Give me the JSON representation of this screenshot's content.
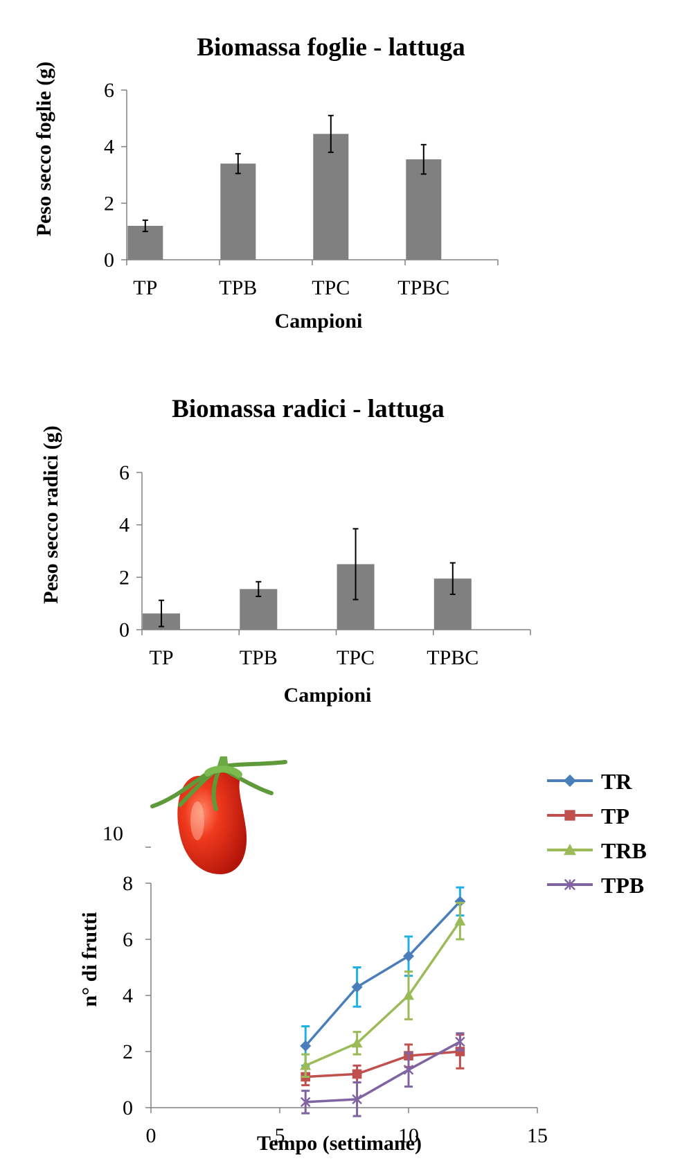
{
  "chart_data": [
    {
      "type": "bar",
      "title": "Biomassa foglie - lattuga",
      "xlabel": "Campioni",
      "ylabel": "Peso secco foglie (g)",
      "ylim": [
        0,
        6
      ],
      "yticks": [
        "0",
        "2",
        "4",
        "6"
      ],
      "categories": [
        "TP",
        "TPB",
        "TPC",
        "TPBC"
      ],
      "values": [
        1.2,
        3.4,
        4.45,
        3.55
      ],
      "errors": [
        0.2,
        0.35,
        0.65,
        0.52
      ],
      "bar_color": "#808080"
    },
    {
      "type": "bar",
      "title": "Biomassa radici - lattuga",
      "xlabel": "Campioni",
      "ylabel": "Peso secco radici (g)",
      "ylim": [
        0,
        6
      ],
      "yticks": [
        "0",
        "2",
        "4",
        "6"
      ],
      "categories": [
        "TP",
        "TPB",
        "TPC",
        "TPBC"
      ],
      "values": [
        0.62,
        1.55,
        2.5,
        1.95
      ],
      "errors": [
        0.5,
        0.28,
        1.35,
        0.6
      ],
      "bar_color": "#808080"
    },
    {
      "type": "line",
      "title": "",
      "xlabel": "Tempo (settimane)",
      "ylabel": "n° di  frutti",
      "xlim": [
        0,
        15
      ],
      "ylim": [
        0,
        8
      ],
      "xticks": [
        "0",
        "5",
        "10",
        "15"
      ],
      "yticks": [
        "0",
        "2",
        "4",
        "6",
        "8"
      ],
      "extra_ytick": "10",
      "x": [
        6,
        8,
        10,
        12
      ],
      "series": [
        {
          "name": "TR",
          "values": [
            2.2,
            4.3,
            5.4,
            7.35
          ],
          "errors": [
            0.7,
            0.7,
            0.7,
            0.5
          ],
          "color": "#4a7ebb",
          "error_color": "#1fb0e6",
          "marker": "diamond"
        },
        {
          "name": "TP",
          "values": [
            1.1,
            1.2,
            1.85,
            2.0
          ],
          "errors": [
            0.3,
            0.3,
            0.4,
            0.6
          ],
          "color": "#c0504d",
          "error_color": "#c0504d",
          "marker": "square"
        },
        {
          "name": "TRB",
          "values": [
            1.5,
            2.3,
            4.0,
            6.65
          ],
          "errors": [
            0.4,
            0.4,
            0.85,
            0.65
          ],
          "color": "#9bbb59",
          "error_color": "#9bbb59",
          "marker": "triangle"
        },
        {
          "name": "TPB",
          "values": [
            0.2,
            0.3,
            1.35,
            2.35
          ],
          "errors": [
            0.4,
            0.6,
            0.6,
            0.3
          ],
          "color": "#8064a2",
          "error_color": "#8064a2",
          "marker": "x"
        }
      ],
      "legend_position": "top-right"
    }
  ],
  "decoration": {
    "image": "tomato-picture"
  }
}
